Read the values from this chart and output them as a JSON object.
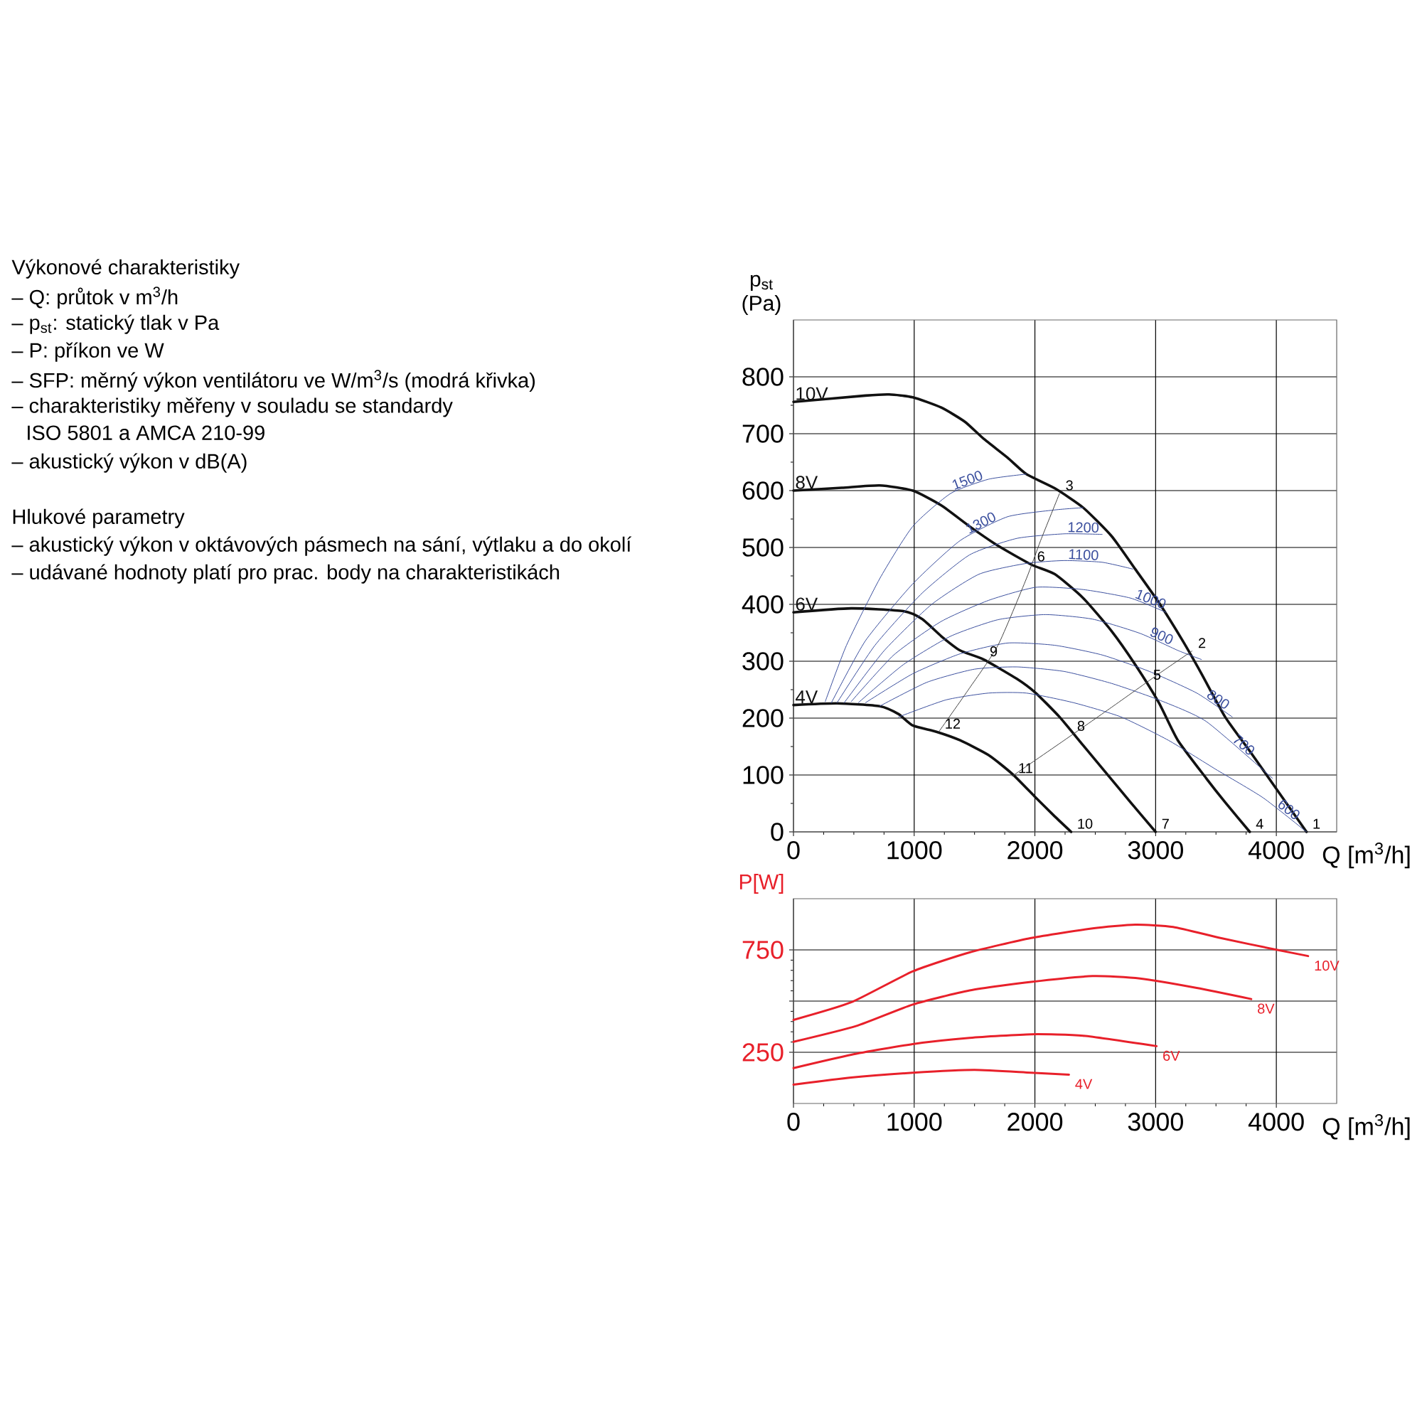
{
  "chart_data": [
    {
      "type": "other",
      "annotations": [
        "Výkonové charakteristiky",
        "– Q: průtok v m$^{3}$/h",
        "– p$_{st}$: statický tlak v Pa",
        "– P: příkon ve W",
        "– SFP: měrný výkon ventilátoru ve W/m$^{3}$/s (modrá křivka)",
        "– charakteristiky měřeny v souladu se standardy",
        "ISO 5801 a AMCA 210-99",
        "– akustický výkon v dB(A)",
        "Hlukové parametry",
        "– akustický výkon v oktávových pásmech na sání, výtlaku a do okolí",
        "– udávané hodnoty platí pro prac. body na charakteristikách"
      ]
    },
    {
      "type": "line",
      "ylabel": "p$_{st}$ (Pa)",
      "xlabel": "Q [m$^{3}$/h]",
      "xlim": [
        0,
        4500
      ],
      "ylim": [
        0,
        900
      ],
      "xticks": [
        0,
        1000,
        2000,
        3000,
        4000
      ],
      "yticks": [
        0,
        100,
        200,
        300,
        400,
        500,
        600,
        700,
        800
      ],
      "grid": true,
      "series": [
        {
          "name": "10V",
          "color": "#111111",
          "x": [
            0,
            596,
            792,
            988,
            1224,
            1420,
            1576,
            1773,
            1929,
            2165,
            2400,
            2635,
            2831,
            3027,
            3224,
            3380,
            3576,
            3773,
            3969,
            4250
          ],
          "values": [
            756,
            767,
            769,
            764,
            746,
            721,
            691,
            658,
            629,
            604,
            570,
            520,
            462,
            403,
            336,
            278,
            202,
            144,
            85,
            0
          ]
        },
        {
          "name": "8V",
          "color": "#111111",
          "x": [
            0,
            400,
            714,
            988,
            1224,
            1459,
            1694,
            1969,
            2165,
            2400,
            2635,
            2831,
            3027,
            3184,
            3420,
            3576,
            3780
          ],
          "values": [
            600,
            605,
            609,
            600,
            574,
            537,
            503,
            470,
            453,
            411,
            353,
            294,
            227,
            161,
            94,
            52,
            0
          ]
        },
        {
          "name": "6V",
          "color": "#111111",
          "x": [
            0,
            478,
            910,
            1067,
            1224,
            1380,
            1576,
            1851,
            2008,
            2204,
            2400,
            2596,
            2792,
            3000
          ],
          "values": [
            386,
            393,
            388,
            374,
            344,
            319,
            303,
            269,
            244,
            202,
            152,
            102,
            52,
            0
          ]
        },
        {
          "name": "4V",
          "color": "#111111",
          "x": [
            0,
            361,
            714,
            871,
            988,
            1184,
            1380,
            1616,
            1812,
            2008,
            2165,
            2300
          ],
          "values": [
            223,
            226,
            221,
            207,
            187,
            176,
            161,
            135,
            102,
            60,
            27,
            0
          ]
        },
        {
          "name": "1500",
          "color": "#3b4f9e",
          "x": [
            263,
            439,
            714,
            988,
            1302,
            1616,
            1929
          ],
          "values": [
            229,
            328,
            445,
            537,
            595,
            620,
            629
          ]
        },
        {
          "name": "1300",
          "color": "#3b4f9e",
          "x": [
            314,
            596,
            988,
            1380,
            1773,
            2165,
            2400
          ],
          "values": [
            227,
            336,
            436,
            512,
            554,
            566,
            570
          ]
        },
        {
          "name": "1200",
          "color": "#3b4f9e",
          "x": [
            361,
            675,
            1067,
            1459,
            1851,
            2243,
            2557
          ],
          "values": [
            227,
            328,
            420,
            487,
            516,
            524,
            523
          ]
        },
        {
          "name": "1100",
          "color": "#3b4f9e",
          "x": [
            420,
            753,
            1145,
            1537,
            1929,
            2243,
            2557,
            2812
          ],
          "values": [
            227,
            319,
            400,
            453,
            472,
            477,
            474,
            462
          ]
        },
        {
          "name": "1000",
          "color": "#3b4f9e",
          "x": [
            478,
            831,
            1224,
            1616,
            2008,
            2400,
            2792,
            3086
          ],
          "values": [
            229,
            311,
            370,
            407,
            430,
            426,
            411,
            386
          ]
        },
        {
          "name": "900",
          "color": "#3b4f9e",
          "x": [
            537,
            910,
            1302,
            1694,
            2086,
            2478,
            2871,
            3184,
            3380
          ],
          "values": [
            227,
            294,
            344,
            373,
            382,
            374,
            349,
            319,
            303
          ]
        },
        {
          "name": "800",
          "color": "#3b4f9e",
          "x": [
            596,
            988,
            1380,
            1773,
            2165,
            2557,
            2949,
            3341,
            3635
          ],
          "values": [
            227,
            278,
            313,
            332,
            328,
            311,
            282,
            244,
            202
          ]
        },
        {
          "name": "700",
          "color": "#3b4f9e",
          "x": [
            714,
            1106,
            1498,
            1851,
            2243,
            2635,
            3027,
            3420,
            3969
          ],
          "values": [
            221,
            263,
            286,
            290,
            282,
            261,
            232,
            194,
            94
          ]
        },
        {
          "name": "600",
          "color": "#3b4f9e",
          "x": [
            871,
            1263,
            1616,
            1929,
            2322,
            2714,
            3106,
            3498,
            3890,
            4250
          ],
          "values": [
            202,
            232,
            244,
            244,
            227,
            202,
            161,
            110,
            60,
            0
          ]
        },
        {
          "color": "#444444",
          "x": [
            1204,
            1459,
            1694,
            1929,
            2047,
            2204
          ],
          "values": [
            176,
            253,
            328,
            445,
            512,
            595
          ]
        },
        {
          "color": "#444444",
          "x": [
            1812,
            2243,
            2635,
            3027,
            3302
          ],
          "values": [
            98,
            161,
            219,
            278,
            318
          ]
        }
      ],
      "annotations": [
        {
          "text": "1",
          "x": 4250,
          "y": 0
        },
        {
          "text": "2",
          "x": 3302,
          "y": 318
        },
        {
          "text": "3",
          "x": 2204,
          "y": 595
        },
        {
          "text": "4",
          "x": 3780,
          "y": 0
        },
        {
          "text": "5",
          "x": 2930,
          "y": 262
        },
        {
          "text": "6",
          "x": 1969,
          "y": 470
        },
        {
          "text": "7",
          "x": 3000,
          "y": 0
        },
        {
          "text": "8",
          "x": 2300,
          "y": 172
        },
        {
          "text": "9",
          "x": 1576,
          "y": 303
        },
        {
          "text": "10",
          "x": 2300,
          "y": 0
        },
        {
          "text": "11",
          "x": 1812,
          "y": 98
        },
        {
          "text": "12",
          "x": 1204,
          "y": 176
        }
      ]
    },
    {
      "type": "line",
      "ylabel": "P[W]",
      "xlabel": "Q [m$^{3}$/h]",
      "xlim": [
        0,
        4500
      ],
      "ylim": [
        0,
        1000
      ],
      "xticks": [
        0,
        1000,
        2000,
        3000,
        4000
      ],
      "yticks": [
        250,
        {
          "value": 500,
          "label": null
        },
        750
      ],
      "grid": true,
      "series": [
        {
          "name": "10V",
          "color": "#e8202a",
          "x": [
            0,
            478,
            988,
            1459,
            1969,
            2478,
            2831,
            3145,
            3537,
            4008,
            4263
          ],
          "values": [
            408,
            494,
            645,
            738,
            808,
            855,
            873,
            862,
            808,
            750,
            720
          ]
        },
        {
          "name": "8V",
          "color": "#e8202a",
          "x": [
            0,
            518,
            988,
            1459,
            1969,
            2478,
            2871,
            3341,
            3792
          ],
          "values": [
            301,
            378,
            483,
            552,
            594,
            622,
            610,
            564,
            510
          ]
        },
        {
          "name": "6V",
          "color": "#e8202a",
          "x": [
            0,
            478,
            988,
            1459,
            1969,
            2400,
            3008
          ],
          "values": [
            173,
            238,
            290,
            320,
            338,
            331,
            280
          ]
        },
        {
          "name": "4V",
          "color": "#e8202a",
          "x": [
            0,
            478,
            988,
            1498,
            1969,
            2282
          ],
          "values": [
            92,
            127,
            150,
            164,
            150,
            141
          ]
        }
      ]
    }
  ]
}
